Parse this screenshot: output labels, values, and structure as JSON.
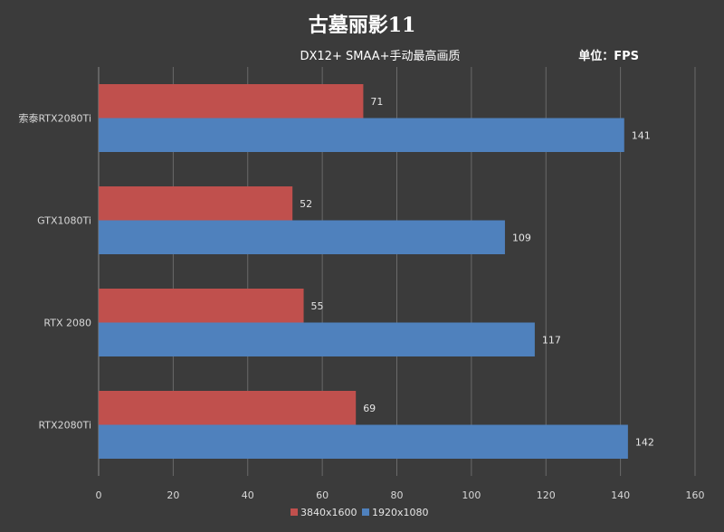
{
  "chart_data": {
    "type": "bar",
    "orientation": "horizontal",
    "title": "古墓丽影11",
    "subtitle": "DX12+ SMAA+手动最高画质",
    "unit_label": "单位：FPS",
    "categories": [
      "索泰RTX2080Ti",
      "GTX1080Ti",
      "RTX 2080",
      "RTX2080Ti"
    ],
    "series": [
      {
        "name": "3840x1600",
        "values": [
          71,
          52,
          55,
          69
        ],
        "color": "#c0504d"
      },
      {
        "name": "1920x1080",
        "values": [
          141,
          109,
          117,
          142
        ],
        "color": "#4f81bd"
      }
    ],
    "xlim": [
      0,
      160
    ],
    "xticks": [
      "0",
      "20",
      "40",
      "60",
      "80",
      "100",
      "120",
      "140",
      "160"
    ],
    "grid": true,
    "legend_position": "bottom"
  }
}
